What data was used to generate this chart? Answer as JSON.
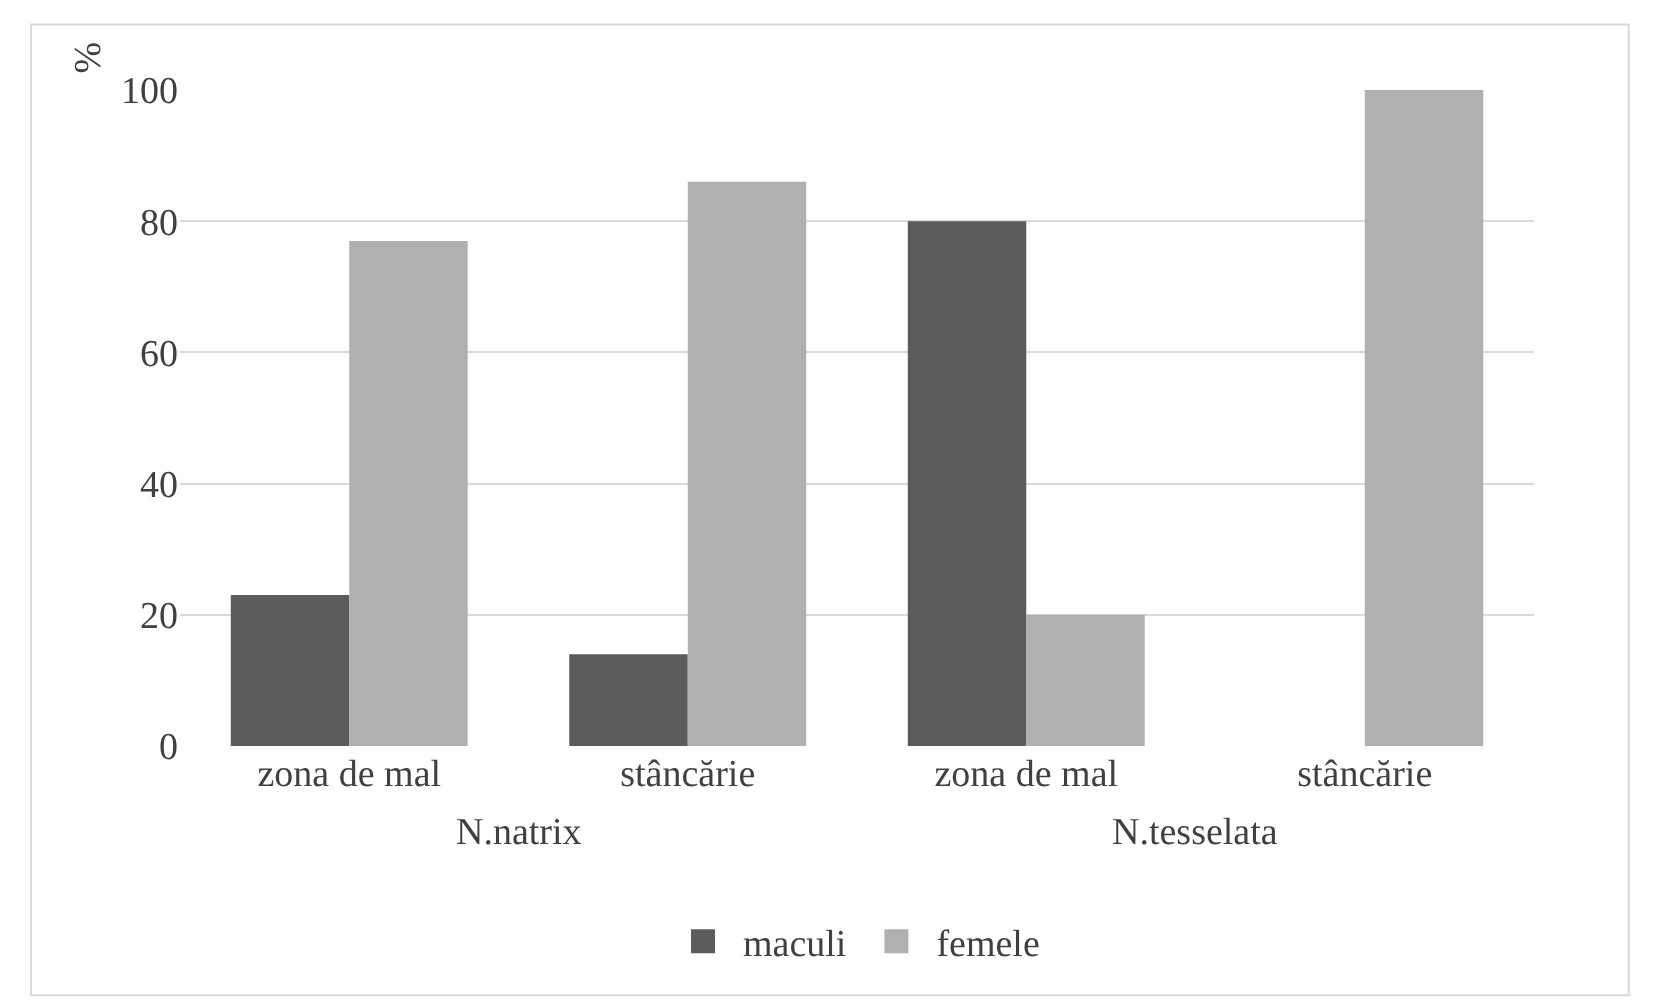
{
  "chart_data": {
    "type": "bar",
    "categories": [
      "zona de mal",
      "stâncărie",
      "zona de mal",
      "stâncărie"
    ],
    "series": [
      {
        "name": "maculi",
        "color": "#5b5b5b",
        "values": [
          23,
          14,
          80,
          0
        ]
      },
      {
        "name": "femele",
        "color": "#b0b0b0",
        "values": [
          77,
          86,
          20,
          100
        ]
      }
    ],
    "ylabel": "%",
    "annotations": [
      "N.natrix",
      "N.tesselata"
    ],
    "ylim": [
      0,
      100
    ],
    "yticks": [
      0,
      20,
      40,
      60,
      80,
      100
    ],
    "grid": "y",
    "legend": "bottom"
  }
}
